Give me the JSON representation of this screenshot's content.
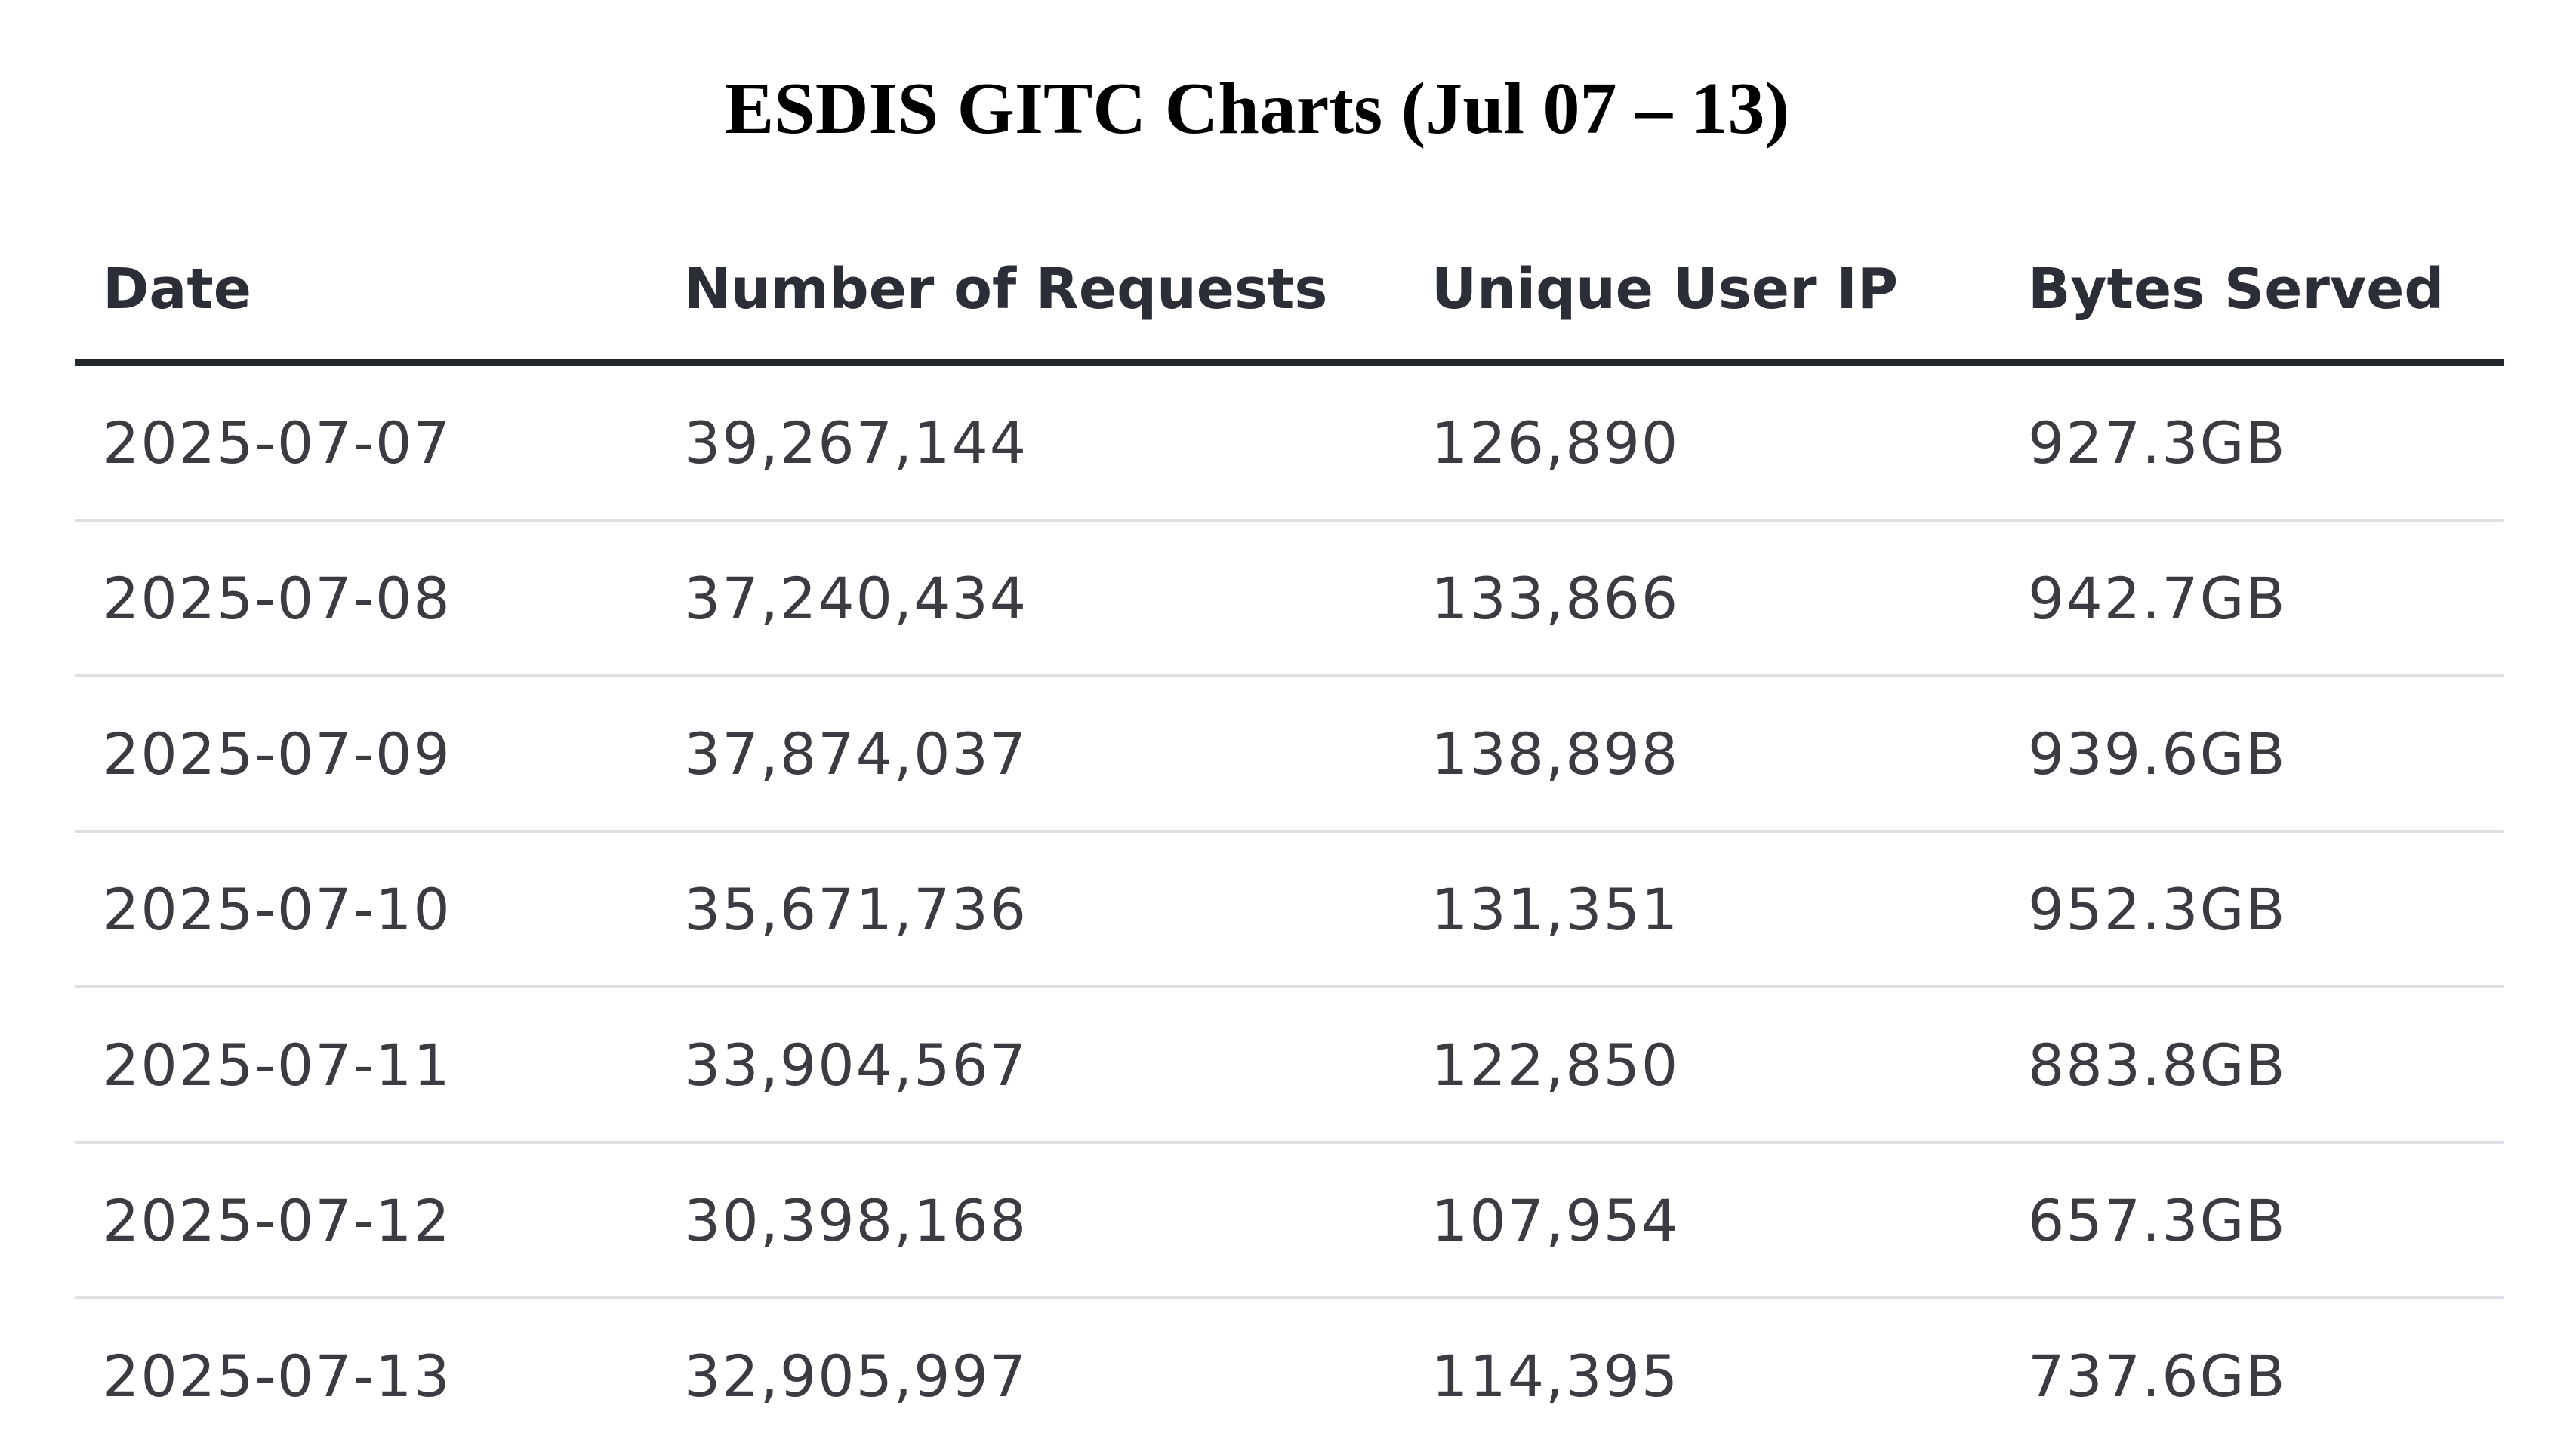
{
  "title": "ESDIS GITC Charts (Jul 07 – 13)",
  "table": {
    "headers": [
      "Date",
      "Number of Requests",
      "Unique User IP",
      "Bytes Served"
    ],
    "rows": [
      [
        "2025-07-07",
        "39,267,144",
        "126,890",
        "927.3GB"
      ],
      [
        "2025-07-08",
        "37,240,434",
        "133,866",
        "942.7GB"
      ],
      [
        "2025-07-09",
        "37,874,037",
        "138,898",
        "939.6GB"
      ],
      [
        "2025-07-10",
        "35,671,736",
        "131,351",
        "952.3GB"
      ],
      [
        "2025-07-11",
        "33,904,567",
        "122,850",
        "883.8GB"
      ],
      [
        "2025-07-12",
        "30,398,168",
        "107,954",
        "657.3GB"
      ],
      [
        "2025-07-13",
        "32,905,997",
        "114,395",
        "737.6GB"
      ]
    ]
  },
  "colors": {
    "header_text": "#2b2e36",
    "cell_text": "#3a3c42",
    "header_rule": "#23262d",
    "row_rule": "#dde1e6"
  }
}
